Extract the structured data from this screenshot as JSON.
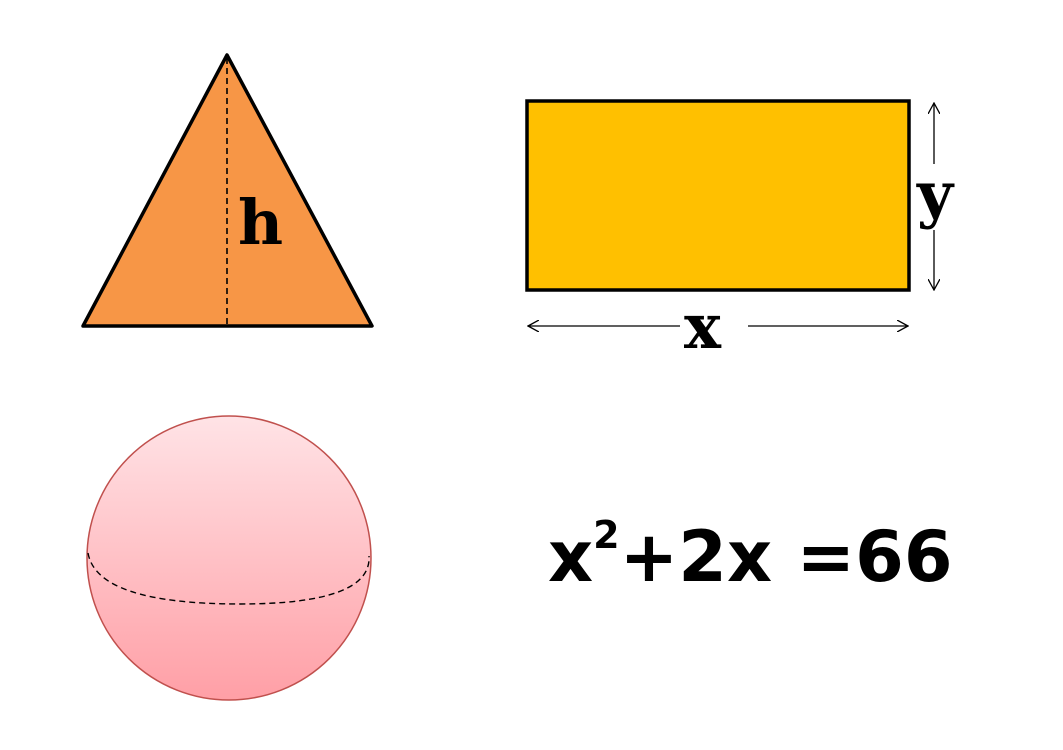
{
  "colors": {
    "triangle_fill": "#F79646",
    "rectangle_fill": "#FFC000",
    "sphere_top": "#FFE3E6",
    "sphere_bottom": "#FF9FA6",
    "sphere_stroke": "#C0504D",
    "outline": "#000000"
  },
  "triangle": {
    "height_label": "h"
  },
  "rectangle": {
    "width_label": "x",
    "height_label": "y"
  },
  "equation": {
    "base": "x",
    "exponent": "2",
    "rest": "+2x =66"
  }
}
